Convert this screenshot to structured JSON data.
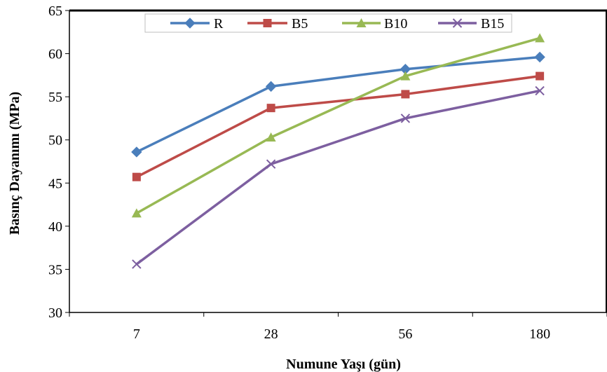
{
  "chart_data": {
    "type": "line",
    "title": "",
    "xlabel": "Numune Yaşı (gün)",
    "ylabel": "Basınç Dayanımı (MPa)",
    "categories": [
      "7",
      "28",
      "56",
      "180"
    ],
    "ylim": [
      30,
      65
    ],
    "yticks": [
      "30",
      "35",
      "40",
      "45",
      "50",
      "55",
      "60",
      "65"
    ],
    "grid": false,
    "legend_position": "top",
    "series": [
      {
        "name": "R",
        "values": [
          48.6,
          56.2,
          58.2,
          59.6
        ],
        "color": "#4a7ebb",
        "marker": "diamond"
      },
      {
        "name": "B5",
        "values": [
          45.7,
          53.7,
          55.3,
          57.4
        ],
        "color": "#be4b48",
        "marker": "square"
      },
      {
        "name": "B10",
        "values": [
          41.5,
          50.3,
          57.4,
          61.8
        ],
        "color": "#98b954",
        "marker": "triangle"
      },
      {
        "name": "B15",
        "values": [
          35.6,
          47.2,
          52.5,
          55.7
        ],
        "color": "#7d5fa0",
        "marker": "x"
      }
    ]
  }
}
